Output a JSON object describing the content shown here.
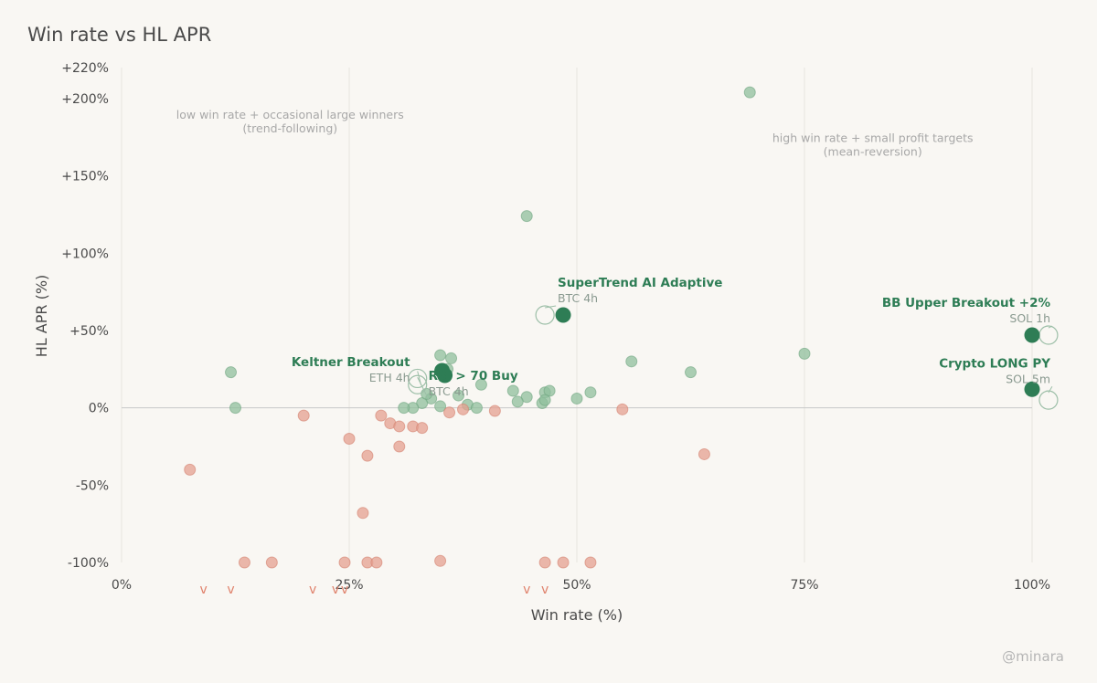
{
  "title": "Win rate vs HL APR",
  "watermark": "@minara",
  "chart_data": {
    "type": "scatter",
    "xlabel": "Win rate (%)",
    "ylabel": "HL APR (%)",
    "xlim": [
      0,
      100
    ],
    "ylim": [
      -100,
      220
    ],
    "x_ticks": [
      {
        "value": 0,
        "label": "0%"
      },
      {
        "value": 25,
        "label": "25%"
      },
      {
        "value": 50,
        "label": "50%"
      },
      {
        "value": 75,
        "label": "75%"
      },
      {
        "value": 100,
        "label": "100%"
      }
    ],
    "y_ticks": [
      {
        "value": 220,
        "label": "+220%"
      },
      {
        "value": 200,
        "label": "+200%"
      },
      {
        "value": 150,
        "label": "+150%"
      },
      {
        "value": 100,
        "label": "+100%"
      },
      {
        "value": 50,
        "label": "+50%"
      },
      {
        "value": 0,
        "label": "0%"
      },
      {
        "value": -50,
        "label": "-50%"
      },
      {
        "value": -100,
        "label": "-100%"
      }
    ],
    "grid": "vertical",
    "colors": {
      "positive": "#8fbf9c",
      "negative": "#e4a090",
      "highlight": "#2e7d55",
      "zero_line": "#c8c8c8",
      "grid": "#e6e4df",
      "marker": "#e0826c"
    },
    "annotations": [
      {
        "text": "low win rate + occasional large winners",
        "x": 18.5,
        "y": 187
      },
      {
        "text": "(trend-following)",
        "x": 18.5,
        "y": 178
      },
      {
        "text": "high win rate + small profit targets",
        "x": 82.5,
        "y": 172
      },
      {
        "text": "(mean-reversion)",
        "x": 82.5,
        "y": 163
      }
    ],
    "highlights": [
      {
        "name": "SuperTrend AI Adaptive",
        "sub": "BTC 4h",
        "x": 48.5,
        "y": 60,
        "ghost_x": 46.5,
        "ghost_y": 60
      },
      {
        "name": "BB Upper Breakout +2%",
        "sub": "SOL 1h",
        "x": 100,
        "y": 47,
        "ghost_x": 101.8,
        "ghost_y": 47
      },
      {
        "name": "Crypto LONG PY",
        "sub": "SOL 5m",
        "x": 100,
        "y": 12,
        "ghost_x": 101.8,
        "ghost_y": 5
      },
      {
        "name": "Keltner Breakout",
        "sub": "ETH 4h",
        "x": 35.2,
        "y": 24,
        "ghost_x": 32.5,
        "ghost_y": 19
      },
      {
        "name": "RSI > 70 Buy",
        "sub": "BTC 4h",
        "x": 35.5,
        "y": 21,
        "ghost_x": 32.5,
        "ghost_y": 15
      }
    ],
    "points": [
      {
        "x": 69,
        "y": 204
      },
      {
        "x": 44.5,
        "y": 124
      },
      {
        "x": 75,
        "y": 35
      },
      {
        "x": 56,
        "y": 30
      },
      {
        "x": 62.5,
        "y": 23
      },
      {
        "x": 35,
        "y": 34
      },
      {
        "x": 36.2,
        "y": 32
      },
      {
        "x": 35.8,
        "y": 25
      },
      {
        "x": 12,
        "y": 23
      },
      {
        "x": 12.5,
        "y": 0
      },
      {
        "x": 39.5,
        "y": 15
      },
      {
        "x": 43,
        "y": 11
      },
      {
        "x": 44.5,
        "y": 7
      },
      {
        "x": 46.5,
        "y": 10
      },
      {
        "x": 47,
        "y": 11
      },
      {
        "x": 51.5,
        "y": 10
      },
      {
        "x": 50,
        "y": 6
      },
      {
        "x": 46.2,
        "y": 3
      },
      {
        "x": 43.5,
        "y": 4
      },
      {
        "x": 46.5,
        "y": 5
      },
      {
        "x": 38,
        "y": 2
      },
      {
        "x": 39,
        "y": 0
      },
      {
        "x": 37,
        "y": 8
      },
      {
        "x": 35,
        "y": 1
      },
      {
        "x": 34,
        "y": 6
      },
      {
        "x": 33,
        "y": 3
      },
      {
        "x": 32,
        "y": 0
      },
      {
        "x": 31,
        "y": 0
      },
      {
        "x": 33.5,
        "y": 9
      },
      {
        "x": 20,
        "y": -5
      },
      {
        "x": 28.5,
        "y": -5
      },
      {
        "x": 29.5,
        "y": -10
      },
      {
        "x": 30.5,
        "y": -12
      },
      {
        "x": 32,
        "y": -12
      },
      {
        "x": 33,
        "y": -13
      },
      {
        "x": 36,
        "y": -3
      },
      {
        "x": 37.5,
        "y": -1
      },
      {
        "x": 41,
        "y": -2
      },
      {
        "x": 55,
        "y": -1
      },
      {
        "x": 25,
        "y": -20
      },
      {
        "x": 30.5,
        "y": -25
      },
      {
        "x": 27,
        "y": -31
      },
      {
        "x": 64,
        "y": -30
      },
      {
        "x": 7.5,
        "y": -40
      },
      {
        "x": 26.5,
        "y": -68
      },
      {
        "x": 13.5,
        "y": -100
      },
      {
        "x": 16.5,
        "y": -100
      },
      {
        "x": 24.5,
        "y": -100
      },
      {
        "x": 27,
        "y": -100
      },
      {
        "x": 28,
        "y": -100
      },
      {
        "x": 35,
        "y": -99
      },
      {
        "x": 46.5,
        "y": -100
      },
      {
        "x": 48.5,
        "y": -100
      },
      {
        "x": 51.5,
        "y": -100
      }
    ],
    "out_of_range_markers": [
      {
        "x": 9,
        "label": "v"
      },
      {
        "x": 12,
        "label": "v"
      },
      {
        "x": 21,
        "label": "v"
      },
      {
        "x": 23.5,
        "label": "v"
      },
      {
        "x": 24.5,
        "label": "v"
      },
      {
        "x": 44.5,
        "label": "v"
      },
      {
        "x": 46.5,
        "label": "v"
      }
    ]
  }
}
